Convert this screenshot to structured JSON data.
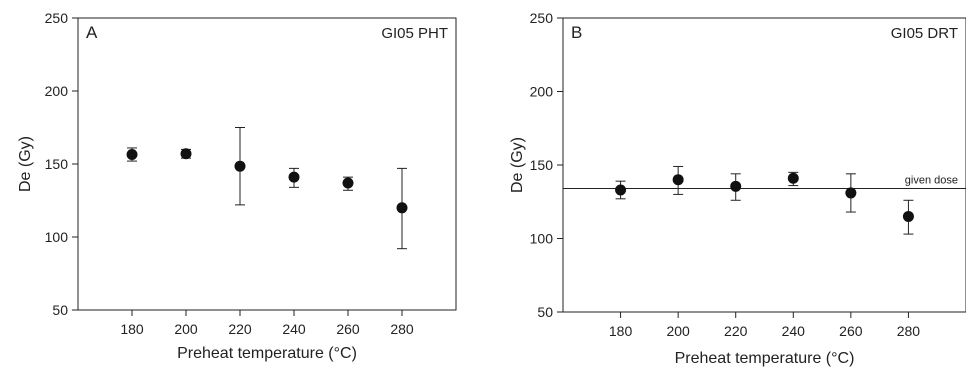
{
  "chart_data": [
    {
      "type": "scatter",
      "panel_label": "A",
      "corner_label": "GI05 PHT",
      "xlabel": "Preheat temperature (°C)",
      "ylabel": "De (Gy)",
      "xlim": [
        160,
        300
      ],
      "ylim": [
        50,
        250
      ],
      "xticks": [
        "180",
        "200",
        "220",
        "240",
        "260",
        "280"
      ],
      "yticks": [
        "50",
        "100",
        "150",
        "200",
        "250"
      ],
      "grid": false,
      "points": [
        {
          "x": 180,
          "y": 156.5,
          "err_low": 152,
          "err_high": 161
        },
        {
          "x": 200,
          "y": 157,
          "err_low": 154,
          "err_high": 160
        },
        {
          "x": 220,
          "y": 148.5,
          "err_low": 122,
          "err_high": 175
        },
        {
          "x": 240,
          "y": 141,
          "err_low": 134,
          "err_high": 147
        },
        {
          "x": 260,
          "y": 137,
          "err_low": 132,
          "err_high": 141
        },
        {
          "x": 280,
          "y": 120,
          "err_low": 92,
          "err_high": 147
        }
      ]
    },
    {
      "type": "scatter",
      "panel_label": "B",
      "corner_label": "GI05 DRT",
      "xlabel": "Preheat temperature (°C)",
      "ylabel": "De (Gy)",
      "xlim": [
        160,
        300
      ],
      "ylim": [
        50,
        250
      ],
      "xticks": [
        "180",
        "200",
        "220",
        "240",
        "260",
        "280"
      ],
      "yticks": [
        "50",
        "100",
        "150",
        "200",
        "250"
      ],
      "grid": false,
      "reference_line": {
        "y": 134,
        "label": "given dose"
      },
      "points": [
        {
          "x": 180,
          "y": 133,
          "err_low": 127,
          "err_high": 139
        },
        {
          "x": 200,
          "y": 140,
          "err_low": 130,
          "err_high": 149
        },
        {
          "x": 220,
          "y": 135.5,
          "err_low": 126,
          "err_high": 144
        },
        {
          "x": 240,
          "y": 141,
          "err_low": 136,
          "err_high": 145
        },
        {
          "x": 260,
          "y": 131,
          "err_low": 118,
          "err_high": 144
        },
        {
          "x": 280,
          "y": 115,
          "err_low": 103,
          "err_high": 126
        }
      ]
    }
  ]
}
